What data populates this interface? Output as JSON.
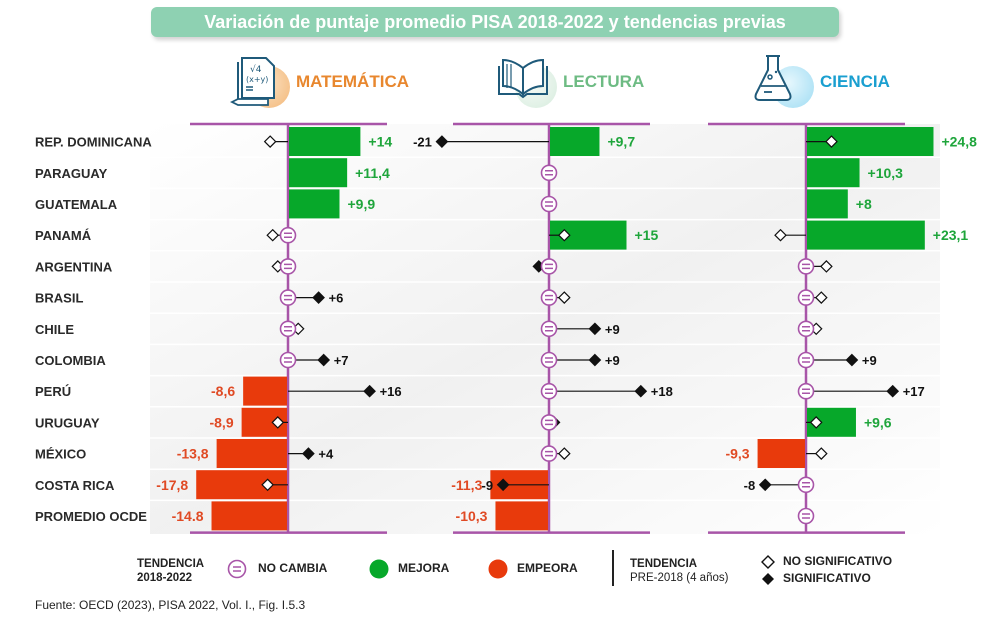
{
  "title": "Variación de puntaje promedio PISA 2018-2022 y tendencias previas",
  "colors": {
    "title_bg": "#8ed1b2",
    "axis": "#a855a8",
    "improve": "#07a82a",
    "worsen": "#e83a0c",
    "math_label": "#e8872e",
    "reading_label": "#6dbb83",
    "science_label": "#1a9fd0"
  },
  "subjects": [
    {
      "key": "math",
      "label": "MATEMÁTICA",
      "icon": "math-document-icon"
    },
    {
      "key": "reading",
      "label": "LECTURA",
      "icon": "open-book-icon"
    },
    {
      "key": "science",
      "label": "CIENCIA",
      "icon": "flask-icon"
    }
  ],
  "legend": {
    "trend_2018_2022_title_line1": "TENDENCIA",
    "trend_2018_2022_title_line2": "2018-2022",
    "no_change": "NO CAMBIA",
    "improve": "MEJORA",
    "worsen": "EMPEORA",
    "trend_pre_title_line1": "TENDENCIA",
    "trend_pre_title_line2": "PRE-2018 (4 años)",
    "not_significant": "NO SIGNIFICATIVO",
    "significant": "SIGNIFICATIVO"
  },
  "source": "Fuente: OECD (2023), PISA 2022, Vol. I.,  Fig. I.5.3",
  "chart_data": {
    "type": "bar",
    "title": "Variación de puntaje promedio PISA 2018-2022 y tendencias previas",
    "categories": [
      "REP. DOMINICANA",
      "PARAGUAY",
      "GUATEMALA",
      "PANAMÁ",
      "ARGENTINA",
      "BRASIL",
      "CHILE",
      "COLOMBIA",
      "PERÚ",
      "URUGUAY",
      "MÉXICO",
      "COSTA RICA",
      "PROMEDIO OCDE"
    ],
    "xlim": [
      -25,
      27
    ],
    "series": [
      {
        "name": "MATEMÁTICA",
        "change_2018_2022": [
          14,
          11.4,
          9.9,
          0,
          0,
          0,
          0,
          0,
          -8.6,
          -8.9,
          -13.8,
          -17.8,
          -14.8
        ],
        "change_labels": [
          "+14",
          "+11,4",
          "+9,9",
          "",
          "",
          "",
          "",
          "",
          "-8,6",
          "-8,9",
          "-13,8",
          "-17,8",
          "-14.8"
        ],
        "status": [
          "improve",
          "improve",
          "improve",
          "no_change",
          "no_change",
          "no_change",
          "no_change",
          "no_change",
          "worsen",
          "worsen",
          "worsen",
          "worsen",
          "worsen"
        ],
        "pre2018_trend": [
          -3.5,
          null,
          null,
          -3,
          -2,
          6,
          2,
          7,
          16,
          -2,
          4,
          -4,
          null
        ],
        "pre2018_significant": [
          false,
          null,
          null,
          false,
          false,
          true,
          false,
          true,
          true,
          false,
          true,
          false,
          null
        ],
        "pre2018_labels": [
          "",
          "",
          "",
          "",
          "",
          "+6",
          "",
          "+7",
          "+16",
          "",
          "+4",
          "",
          ""
        ]
      },
      {
        "name": "LECTURA",
        "change_2018_2022": [
          9.7,
          0,
          0,
          15,
          0,
          0,
          0,
          0,
          0,
          0,
          0,
          -11.3,
          -10.3
        ],
        "change_labels": [
          "+9,7",
          "",
          "",
          "+15",
          "",
          "",
          "",
          "",
          "",
          "",
          "",
          "-11,3",
          "-10,3"
        ],
        "status": [
          "improve",
          "no_change",
          "no_change",
          "improve",
          "no_change",
          "no_change",
          "no_change",
          "no_change",
          "no_change",
          "no_change",
          "no_change",
          "worsen",
          "worsen"
        ],
        "pre2018_trend": [
          -21,
          null,
          null,
          3,
          -2,
          3,
          9,
          9,
          18,
          1,
          3,
          -9,
          null
        ],
        "pre2018_significant": [
          true,
          null,
          null,
          false,
          true,
          false,
          true,
          true,
          true,
          true,
          false,
          true,
          null
        ],
        "pre2018_labels": [
          "-21",
          "",
          "",
          "",
          "",
          "",
          "+9",
          "+9",
          "+18",
          "",
          "",
          "-9",
          ""
        ]
      },
      {
        "name": "CIENCIA",
        "change_2018_2022": [
          24.8,
          10.3,
          8,
          23.1,
          0,
          0,
          0,
          0,
          0,
          9.6,
          -9.3,
          0,
          0
        ],
        "change_labels": [
          "+24,8",
          "+10,3",
          "+8",
          "+23,1",
          "",
          "",
          "",
          "",
          "",
          "+9,6",
          "-9,3",
          "",
          ""
        ],
        "status": [
          "improve",
          "improve",
          "improve",
          "improve",
          "no_change",
          "no_change",
          "no_change",
          "no_change",
          "no_change",
          "improve",
          "worsen",
          "no_change",
          "no_change"
        ],
        "pre2018_trend": [
          5,
          null,
          null,
          -5,
          4,
          3,
          2,
          9,
          17,
          2,
          3,
          -8,
          null
        ],
        "pre2018_significant": [
          false,
          null,
          null,
          false,
          false,
          false,
          false,
          true,
          true,
          false,
          false,
          true,
          null
        ],
        "pre2018_labels": [
          "",
          "",
          "",
          "",
          "",
          "",
          "",
          "+9",
          "+17",
          "",
          "",
          "-8",
          ""
        ]
      }
    ]
  }
}
